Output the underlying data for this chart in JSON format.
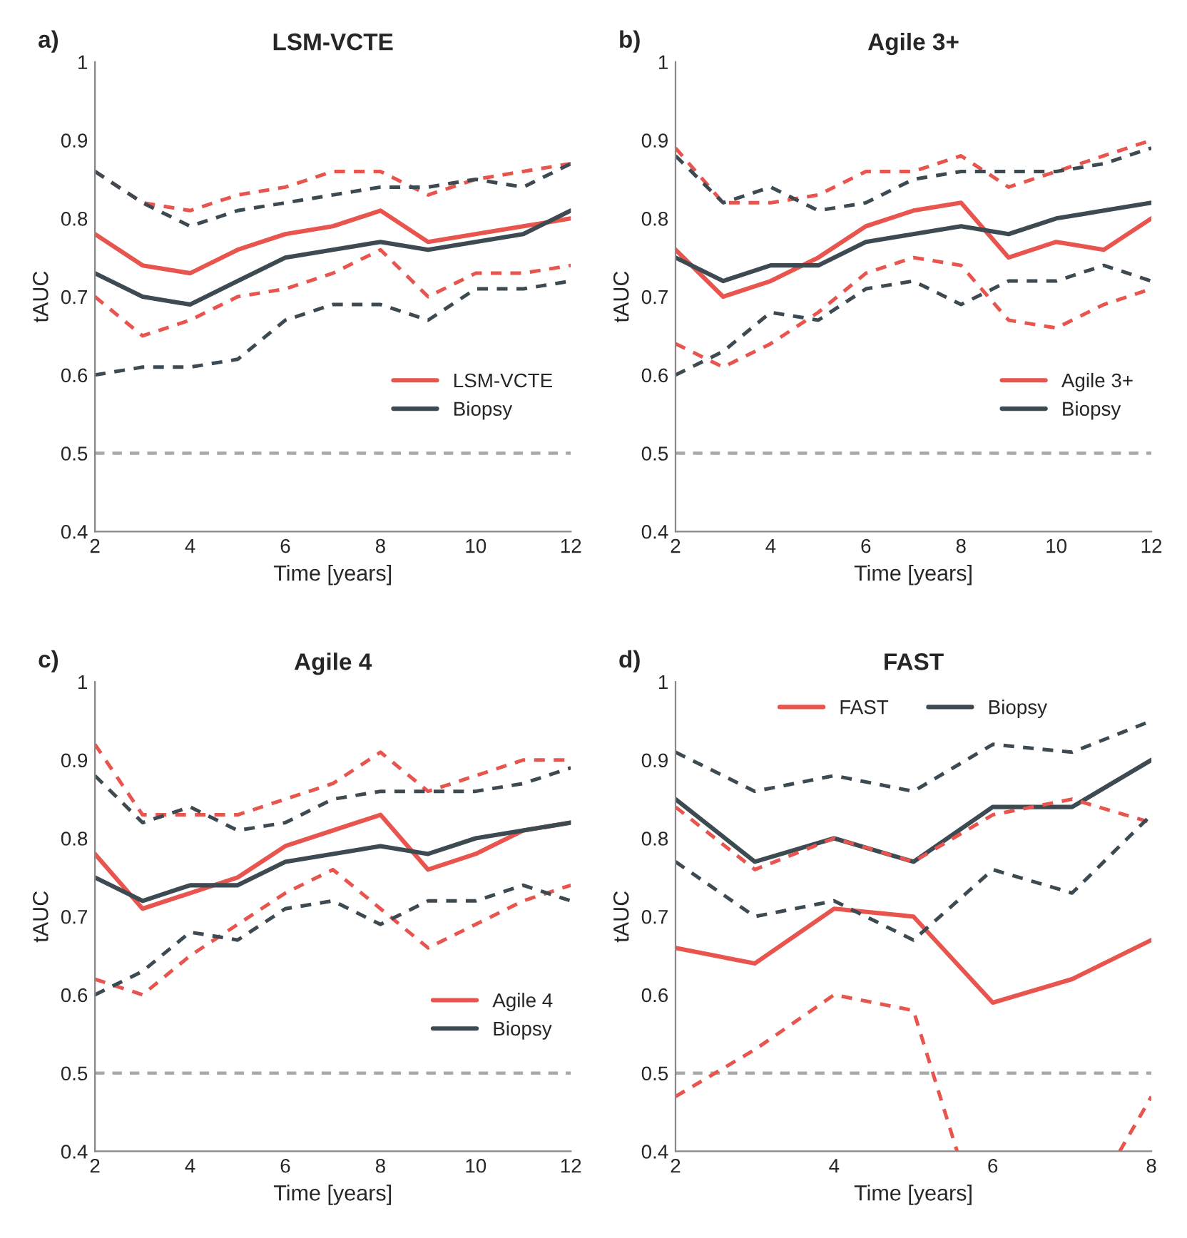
{
  "chart_data": [
    {
      "type": "line",
      "title": "LSM-VCTE",
      "annotations": [
        "a)"
      ],
      "xlabel": "Time [years]",
      "ylabel": "tAUC",
      "x": [
        2,
        3,
        4,
        5,
        6,
        7,
        8,
        9,
        10,
        11,
        12
      ],
      "xlim": [
        2,
        12
      ],
      "xticks": [
        2,
        4,
        6,
        8,
        10,
        12
      ],
      "ylim": [
        0.4,
        1
      ],
      "yticks": [
        0.4,
        0.5,
        0.6,
        0.7,
        0.8,
        0.9,
        1
      ],
      "grid": false,
      "legend": "right",
      "ref_lines": [
        {
          "axis": "y",
          "value": 0.5,
          "color": "#a9a9a9",
          "line_style": "dashed"
        }
      ],
      "series": [
        {
          "name": "LSM-VCTE",
          "color": "#e8554e",
          "line_style": "solid",
          "values": [
            0.78,
            0.74,
            0.73,
            0.76,
            0.78,
            0.79,
            0.81,
            0.77,
            0.78,
            0.79,
            0.8
          ]
        },
        {
          "name": "Biopsy",
          "color": "#3d4a52",
          "line_style": "solid",
          "values": [
            0.73,
            0.7,
            0.69,
            0.72,
            0.75,
            0.76,
            0.77,
            0.76,
            0.77,
            0.78,
            0.81
          ]
        },
        {
          "color": "#e8554e",
          "line_style": "dashed",
          "values": [
            0.86,
            0.82,
            0.81,
            0.83,
            0.84,
            0.86,
            0.86,
            0.83,
            0.85,
            0.86,
            0.87
          ]
        },
        {
          "color": "#3d4a52",
          "line_style": "dashed",
          "values": [
            0.86,
            0.82,
            0.79,
            0.81,
            0.82,
            0.83,
            0.84,
            0.84,
            0.85,
            0.84,
            0.87
          ]
        },
        {
          "color": "#e8554e",
          "line_style": "dashed",
          "values": [
            0.7,
            0.65,
            0.67,
            0.7,
            0.71,
            0.73,
            0.76,
            0.7,
            0.73,
            0.73,
            0.74
          ]
        },
        {
          "color": "#3d4a52",
          "line_style": "dashed",
          "values": [
            0.6,
            0.61,
            0.61,
            0.62,
            0.67,
            0.69,
            0.69,
            0.67,
            0.71,
            0.71,
            0.72
          ]
        }
      ]
    },
    {
      "type": "line",
      "title": "Agile 3+",
      "annotations": [
        "b)"
      ],
      "xlabel": "Time [years]",
      "ylabel": "tAUC",
      "x": [
        2,
        3,
        4,
        5,
        6,
        7,
        8,
        9,
        10,
        11,
        12
      ],
      "xlim": [
        2,
        12
      ],
      "xticks": [
        2,
        4,
        6,
        8,
        10,
        12
      ],
      "ylim": [
        0.4,
        1
      ],
      "yticks": [
        0.4,
        0.5,
        0.6,
        0.7,
        0.8,
        0.9,
        1
      ],
      "grid": false,
      "legend": "right",
      "ref_lines": [
        {
          "axis": "y",
          "value": 0.5,
          "color": "#a9a9a9",
          "line_style": "dashed"
        }
      ],
      "series": [
        {
          "name": "Agile 3+",
          "color": "#e8554e",
          "line_style": "solid",
          "values": [
            0.76,
            0.7,
            0.72,
            0.75,
            0.79,
            0.81,
            0.82,
            0.75,
            0.77,
            0.76,
            0.8
          ]
        },
        {
          "name": "Biopsy",
          "color": "#3d4a52",
          "line_style": "solid",
          "values": [
            0.75,
            0.72,
            0.74,
            0.74,
            0.77,
            0.78,
            0.79,
            0.78,
            0.8,
            0.81,
            0.82
          ]
        },
        {
          "color": "#e8554e",
          "line_style": "dashed",
          "values": [
            0.89,
            0.82,
            0.82,
            0.83,
            0.86,
            0.86,
            0.88,
            0.84,
            0.86,
            0.88,
            0.9
          ]
        },
        {
          "color": "#3d4a52",
          "line_style": "dashed",
          "values": [
            0.88,
            0.82,
            0.84,
            0.81,
            0.82,
            0.85,
            0.86,
            0.86,
            0.86,
            0.87,
            0.89
          ]
        },
        {
          "color": "#e8554e",
          "line_style": "dashed",
          "values": [
            0.64,
            0.61,
            0.64,
            0.68,
            0.73,
            0.75,
            0.74,
            0.67,
            0.66,
            0.69,
            0.71
          ]
        },
        {
          "color": "#3d4a52",
          "line_style": "dashed",
          "values": [
            0.6,
            0.63,
            0.68,
            0.67,
            0.71,
            0.72,
            0.69,
            0.72,
            0.72,
            0.74,
            0.72
          ]
        }
      ]
    },
    {
      "type": "line",
      "title": "Agile 4",
      "annotations": [
        "c)"
      ],
      "xlabel": "Time [years]",
      "ylabel": "tAUC",
      "x": [
        2,
        3,
        4,
        5,
        6,
        7,
        8,
        9,
        10,
        11,
        12
      ],
      "xlim": [
        2,
        12
      ],
      "xticks": [
        2,
        4,
        6,
        8,
        10,
        12
      ],
      "ylim": [
        0.4,
        1
      ],
      "yticks": [
        0.4,
        0.5,
        0.6,
        0.7,
        0.8,
        0.9,
        1
      ],
      "grid": false,
      "legend": "right",
      "ref_lines": [
        {
          "axis": "y",
          "value": 0.5,
          "color": "#a9a9a9",
          "line_style": "dashed"
        }
      ],
      "series": [
        {
          "name": "Agile 4",
          "color": "#e8554e",
          "line_style": "solid",
          "values": [
            0.78,
            0.71,
            0.73,
            0.75,
            0.79,
            0.81,
            0.83,
            0.76,
            0.78,
            0.81,
            0.82
          ]
        },
        {
          "name": "Biopsy",
          "color": "#3d4a52",
          "line_style": "solid",
          "values": [
            0.75,
            0.72,
            0.74,
            0.74,
            0.77,
            0.78,
            0.79,
            0.78,
            0.8,
            0.81,
            0.82
          ]
        },
        {
          "color": "#e8554e",
          "line_style": "dashed",
          "values": [
            0.92,
            0.83,
            0.83,
            0.83,
            0.85,
            0.87,
            0.91,
            0.86,
            0.88,
            0.9,
            0.9
          ]
        },
        {
          "color": "#3d4a52",
          "line_style": "dashed",
          "values": [
            0.88,
            0.82,
            0.84,
            0.81,
            0.82,
            0.85,
            0.86,
            0.86,
            0.86,
            0.87,
            0.89
          ]
        },
        {
          "color": "#e8554e",
          "line_style": "dashed",
          "values": [
            0.62,
            0.6,
            0.65,
            0.69,
            0.73,
            0.76,
            0.71,
            0.66,
            0.69,
            0.72,
            0.74
          ]
        },
        {
          "color": "#3d4a52",
          "line_style": "dashed",
          "values": [
            0.6,
            0.63,
            0.68,
            0.67,
            0.71,
            0.72,
            0.69,
            0.72,
            0.72,
            0.74,
            0.72
          ]
        }
      ]
    },
    {
      "type": "line",
      "title": "FAST",
      "annotations": [
        "d)"
      ],
      "xlabel": "Time [years]",
      "ylabel": "tAUC",
      "x": [
        2,
        3,
        4,
        5,
        6,
        7,
        8
      ],
      "xlim": [
        2,
        8
      ],
      "xticks": [
        2,
        4,
        6,
        8
      ],
      "ylim": [
        0.4,
        1
      ],
      "yticks": [
        0.4,
        0.5,
        0.6,
        0.7,
        0.8,
        0.9,
        1
      ],
      "grid": false,
      "legend": "top",
      "ref_lines": [
        {
          "axis": "y",
          "value": 0.5,
          "color": "#a9a9a9",
          "line_style": "dashed"
        }
      ],
      "series": [
        {
          "name": "FAST",
          "color": "#e8554e",
          "line_style": "solid",
          "values": [
            0.66,
            0.64,
            0.71,
            0.7,
            0.59,
            0.62,
            0.67
          ]
        },
        {
          "name": "Biopsy",
          "color": "#3d4a52",
          "line_style": "solid",
          "values": [
            0.85,
            0.77,
            0.8,
            0.77,
            0.84,
            0.84,
            0.9
          ]
        },
        {
          "color": "#e8554e",
          "line_style": "dashed",
          "values": [
            0.84,
            0.76,
            0.8,
            0.77,
            0.83,
            0.85,
            0.82
          ]
        },
        {
          "color": "#3d4a52",
          "line_style": "dashed",
          "values": [
            0.91,
            0.86,
            0.88,
            0.86,
            0.92,
            0.91,
            0.95
          ]
        },
        {
          "color": "#e8554e",
          "line_style": "dashed",
          "x": [
            2,
            3,
            4,
            5,
            5.55,
            6,
            7.6,
            8
          ],
          "values": [
            0.47,
            0.53,
            0.6,
            0.58,
            0.4,
            null,
            0.4,
            0.47
          ]
        },
        {
          "color": "#3d4a52",
          "line_style": "dashed",
          "values": [
            0.77,
            0.7,
            0.72,
            0.67,
            0.76,
            0.73,
            0.83
          ]
        }
      ]
    }
  ]
}
